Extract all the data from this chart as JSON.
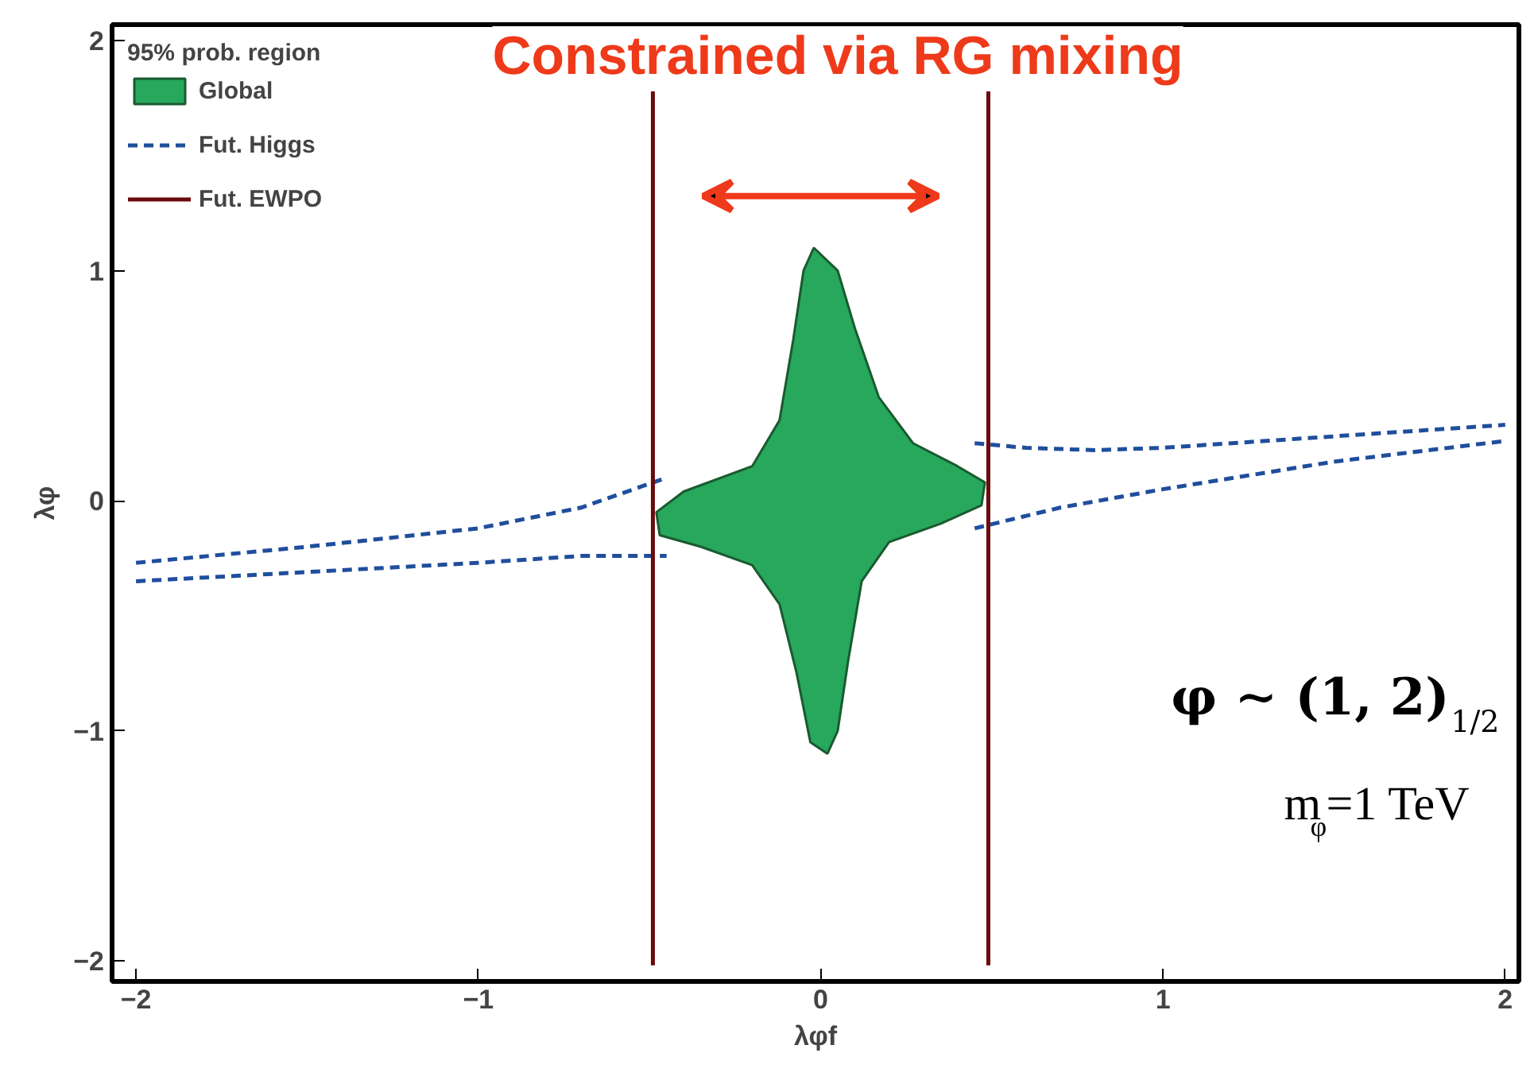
{
  "chart_data": {
    "type": "line",
    "xlabel": "λφf",
    "ylabel": "λφ",
    "legend_title": "95% prob. region",
    "legend": "top left",
    "grid": false,
    "xlim": [
      -2.07,
      2.04
    ],
    "ylim": [
      -2.09,
      2.07
    ],
    "xticks": [
      {
        "value": -2,
        "label": "−2"
      },
      {
        "value": -1,
        "label": "−1"
      },
      0,
      1,
      2
    ],
    "yticks": [
      {
        "value": -2,
        "label": "−2"
      },
      {
        "value": -1,
        "label": "−1"
      },
      0,
      1,
      2
    ],
    "series": [
      {
        "name": "Global",
        "type": "area",
        "color": "#27a85c",
        "x": [
          -0.02,
          0.05,
          0.1,
          0.17,
          0.27,
          0.4,
          0.48,
          0.47,
          0.35,
          0.2,
          0.12,
          0.08,
          0.05,
          0.02,
          -0.03,
          -0.07,
          -0.12,
          -0.2,
          -0.35,
          -0.47,
          -0.48,
          -0.4,
          -0.2,
          -0.12,
          -0.08,
          -0.05,
          -0.02
        ],
        "values": [
          1.1,
          1.0,
          0.75,
          0.45,
          0.25,
          0.15,
          0.08,
          -0.02,
          -0.1,
          -0.18,
          -0.35,
          -0.7,
          -1.0,
          -1.1,
          -1.05,
          -0.75,
          -0.45,
          -0.28,
          -0.2,
          -0.15,
          -0.05,
          0.04,
          0.15,
          0.35,
          0.7,
          1.0,
          1.1
        ]
      },
      {
        "name": "Fut. Higgs",
        "line_style": "dashed",
        "color": "#1f4e9c",
        "x": [
          -2,
          -1.5,
          -1,
          -0.7,
          -0.45,
          0,
          0.45,
          0.6,
          0.8,
          1,
          1.5,
          2
        ],
        "values": [
          -0.27,
          -0.2,
          -0.12,
          -0.03,
          0.1,
          null,
          0.25,
          0.23,
          0.22,
          0.23,
          0.28,
          0.33
        ]
      },
      {
        "line_style": "dashed",
        "color": "#1f4e9c",
        "x": [
          -2,
          -1.5,
          -1,
          -0.7,
          -0.45,
          0,
          0.45,
          0.7,
          1,
          1.5,
          2
        ],
        "values": [
          -0.35,
          -0.31,
          -0.27,
          -0.24,
          -0.24,
          null,
          -0.12,
          -0.03,
          0.05,
          0.17,
          0.26
        ]
      },
      {
        "name": "Fut. EWPO",
        "line_style": "solid",
        "color": "#6b0a0a",
        "x": [
          -0.49,
          -0.49,
          0,
          0.49,
          0.49
        ],
        "values": [
          -2.02,
          1.78,
          null,
          1.78,
          -2.02
        ]
      }
    ],
    "annotations": [
      "Constrained via RG mixing",
      "φ ∼ (1, 2)$_{1/2}$",
      "m$_{φ}$=1 TeV"
    ]
  }
}
